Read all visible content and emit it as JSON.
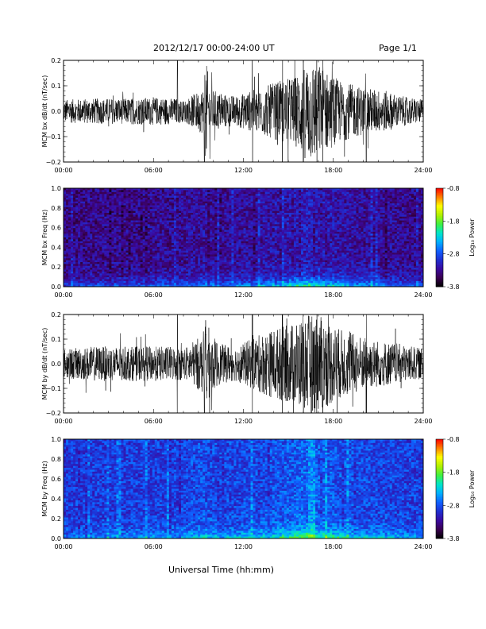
{
  "header": {
    "date_range": "2012/12/17   00:00-24:00 UT",
    "page": "Page 1/1"
  },
  "footer": {
    "xaxis_title": "Universal Time (hh:mm)"
  },
  "colors": {
    "trace": "#000000",
    "colormap": [
      "#000000",
      "#3a0050",
      "#3a0aa0",
      "#1f2fd0",
      "#1060ff",
      "#00b0ff",
      "#00e6c8",
      "#40f040",
      "#b0f000",
      "#ffff00",
      "#ff8000",
      "#ff0000"
    ]
  },
  "chart_data": [
    {
      "type": "line",
      "ylabel": "MCM bx dB/dt (nT/sec)",
      "x_ticks": [
        "00:00",
        "06:00",
        "12:00",
        "18:00",
        "24:00"
      ],
      "y_ticks": [
        "0.2",
        "0.1",
        "0.0",
        "−0.1",
        "−0.2"
      ],
      "xlim": [
        0,
        24
      ],
      "ylim": [
        -0.2,
        0.2
      ],
      "series": [
        {
          "envelope_hours": [
            0,
            2,
            4,
            6,
            7.6,
            8.0,
            9.3,
            9.5,
            9.8,
            10.5,
            11.5,
            12.5,
            13.5,
            14.5,
            15.5,
            16.3,
            16.8,
            17.5,
            18.5,
            19.5,
            20.5,
            21.5,
            22.5,
            24
          ],
          "amplitude": [
            0.045,
            0.05,
            0.05,
            0.055,
            0.05,
            0.04,
            0.09,
            0.2,
            0.09,
            0.07,
            0.06,
            0.08,
            0.1,
            0.12,
            0.14,
            0.2,
            0.2,
            0.16,
            0.12,
            0.1,
            0.09,
            0.08,
            0.06,
            0.045
          ]
        }
      ]
    },
    {
      "type": "heatmap",
      "ylabel": "MCM bx Freq (Hz)",
      "x_ticks": [
        "00:00",
        "06:00",
        "12:00",
        "18:00",
        "24:00"
      ],
      "y_ticks": [
        "1.0",
        "0.8",
        "0.6",
        "0.4",
        "0.2",
        "0.0"
      ],
      "xlim": [
        0,
        24
      ],
      "ylim": [
        0.0,
        1.0
      ],
      "colorbar": {
        "label": "Log₁₀ Power",
        "ticks": [
          "-0.8",
          "-1.8",
          "-2.8",
          "-3.8"
        ],
        "range": [
          -3.8,
          -0.8
        ]
      },
      "background_level": -3.3,
      "low_freq_level": -2.2
    },
    {
      "type": "line",
      "ylabel": "MCM by dB/dt (nT/sec)",
      "x_ticks": [
        "00:00",
        "06:00",
        "12:00",
        "18:00",
        "24:00"
      ],
      "y_ticks": [
        "0.2",
        "0.1",
        "0.0",
        "−0.1",
        "−0.2"
      ],
      "xlim": [
        0,
        24
      ],
      "ylim": [
        -0.2,
        0.2
      ],
      "series": [
        {
          "envelope_hours": [
            0,
            2,
            4,
            6,
            7.6,
            8.0,
            9.3,
            9.5,
            9.8,
            10.5,
            11.5,
            12.5,
            13.5,
            14.5,
            15.5,
            16.3,
            16.8,
            17.5,
            18.5,
            19.5,
            20.5,
            21.5,
            22.5,
            24
          ],
          "amplitude": [
            0.06,
            0.07,
            0.07,
            0.07,
            0.07,
            0.06,
            0.12,
            0.2,
            0.12,
            0.08,
            0.07,
            0.1,
            0.13,
            0.15,
            0.17,
            0.2,
            0.2,
            0.18,
            0.14,
            0.12,
            0.1,
            0.09,
            0.08,
            0.06
          ]
        }
      ]
    },
    {
      "type": "heatmap",
      "ylabel": "MCM by Freq (Hz)",
      "x_ticks": [
        "00:00",
        "06:00",
        "12:00",
        "18:00",
        "24:00"
      ],
      "y_ticks": [
        "1.0",
        "0.8",
        "0.6",
        "0.4",
        "0.2",
        "0.0"
      ],
      "xlim": [
        0,
        24
      ],
      "ylim": [
        0.0,
        1.0
      ],
      "colorbar": {
        "label": "Log₁₀ Power",
        "ticks": [
          "-0.8",
          "-1.8",
          "-2.8",
          "-3.8"
        ],
        "range": [
          -3.8,
          -0.8
        ]
      },
      "background_level": -2.9,
      "low_freq_level": -2.0
    }
  ]
}
